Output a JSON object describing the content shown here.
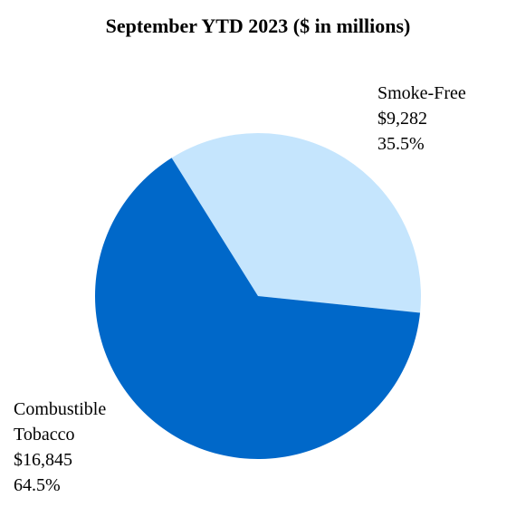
{
  "chart_data": {
    "type": "pie",
    "title": "September YTD 2023 ($ in millions)",
    "categories": [
      "Smoke-Free",
      "Combustible Tobacco"
    ],
    "values": [
      9282,
      16845
    ],
    "value_labels": [
      "$9,282",
      "$16,845"
    ],
    "percentages": [
      35.5,
      64.5
    ],
    "percentage_labels": [
      "35.5%",
      "64.5%"
    ],
    "colors": [
      "#c5e5fd",
      "#0068c9"
    ]
  }
}
